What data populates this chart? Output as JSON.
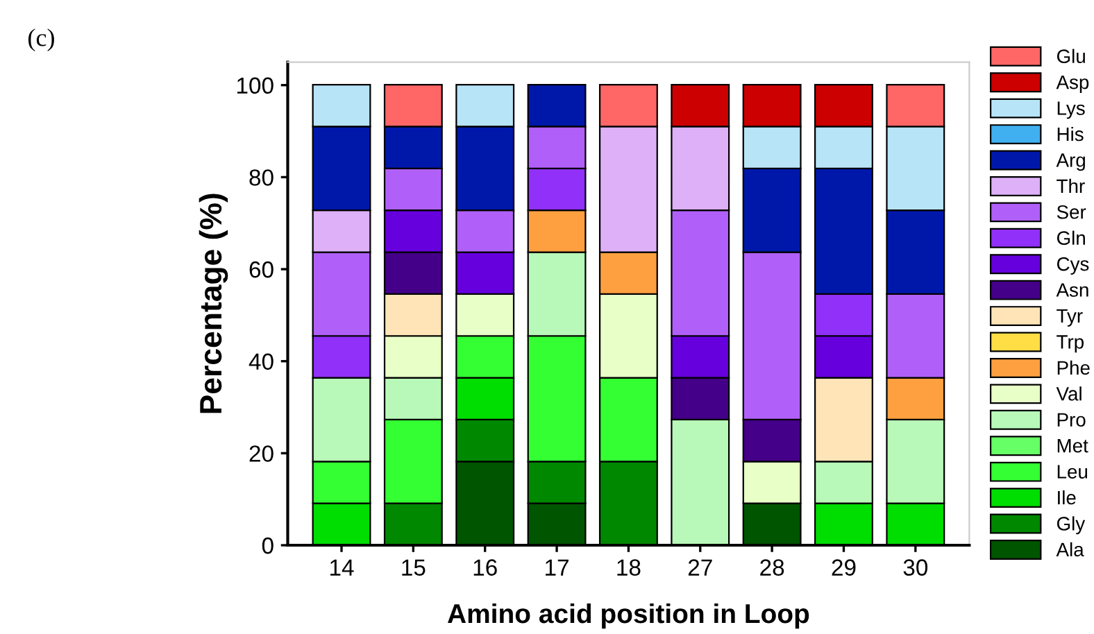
{
  "chart_data": {
    "type": "bar",
    "stacked": true,
    "xlabel": "Amino acid position in Loop",
    "ylabel": "Percentage (%)",
    "annotations": [
      "(c)"
    ],
    "categories": [
      "14",
      "15",
      "16",
      "17",
      "18",
      "27",
      "28",
      "29",
      "30"
    ],
    "ylim": [
      0,
      105
    ],
    "yticks": [
      0,
      20,
      40,
      60,
      80,
      100
    ],
    "grid": false,
    "legend": "right",
    "series": [
      {
        "name": "Ala",
        "color": "#005500",
        "values": [
          null,
          null,
          18.2,
          9.1,
          null,
          null,
          9.1,
          null,
          null
        ]
      },
      {
        "name": "Gly",
        "color": "#008800",
        "values": [
          null,
          9.1,
          9.1,
          9.1,
          18.2,
          null,
          null,
          null,
          null
        ]
      },
      {
        "name": "Ile",
        "color": "#00dd00",
        "values": [
          9.1,
          null,
          9.1,
          null,
          null,
          null,
          null,
          9.1,
          9.1
        ]
      },
      {
        "name": "Leu",
        "color": "#33ff33",
        "values": [
          9.1,
          18.2,
          9.1,
          27.3,
          18.2,
          null,
          null,
          null,
          null
        ]
      },
      {
        "name": "Met",
        "color": "#66ff66",
        "values": [
          null,
          null,
          null,
          null,
          null,
          null,
          null,
          null,
          null
        ]
      },
      {
        "name": "Pro",
        "color": "#b8f8b8",
        "values": [
          18.2,
          9.1,
          null,
          18.2,
          null,
          27.3,
          null,
          9.1,
          18.2
        ]
      },
      {
        "name": "Val",
        "color": "#e8ffc8",
        "values": [
          null,
          9.1,
          9.1,
          null,
          18.2,
          null,
          9.1,
          null,
          null
        ]
      },
      {
        "name": "Phe",
        "color": "#ffa040",
        "values": [
          null,
          null,
          null,
          9.1,
          9.1,
          null,
          null,
          null,
          9.1
        ]
      },
      {
        "name": "Trp",
        "color": "#ffdd44",
        "values": [
          null,
          null,
          null,
          null,
          null,
          null,
          null,
          null,
          null
        ]
      },
      {
        "name": "Tyr",
        "color": "#ffe4b8",
        "values": [
          null,
          9.1,
          null,
          null,
          null,
          null,
          null,
          18.2,
          null
        ]
      },
      {
        "name": "Asn",
        "color": "#440088",
        "values": [
          null,
          9.1,
          null,
          null,
          null,
          9.1,
          9.1,
          null,
          null
        ]
      },
      {
        "name": "Cys",
        "color": "#6600dd",
        "values": [
          null,
          9.1,
          9.1,
          null,
          null,
          9.1,
          null,
          9.1,
          null
        ]
      },
      {
        "name": "Gln",
        "color": "#9030f8",
        "values": [
          9.1,
          null,
          null,
          9.1,
          null,
          null,
          null,
          9.1,
          null
        ]
      },
      {
        "name": "Ser",
        "color": "#b060f8",
        "values": [
          18.2,
          9.1,
          9.1,
          9.1,
          null,
          27.3,
          36.4,
          null,
          18.2
        ]
      },
      {
        "name": "Thr",
        "color": "#ddb0f8",
        "values": [
          9.1,
          null,
          null,
          null,
          27.3,
          18.2,
          null,
          null,
          null
        ]
      },
      {
        "name": "Arg",
        "color": "#0018aa",
        "values": [
          18.2,
          9.1,
          18.2,
          9.1,
          null,
          null,
          18.2,
          27.3,
          18.2
        ]
      },
      {
        "name": "His",
        "color": "#40b0f0",
        "values": [
          null,
          null,
          null,
          null,
          null,
          null,
          null,
          null,
          null
        ]
      },
      {
        "name": "Lys",
        "color": "#b8e4f8",
        "values": [
          9.1,
          null,
          9.1,
          null,
          null,
          null,
          9.1,
          9.1,
          18.2
        ]
      },
      {
        "name": "Asp",
        "color": "#cc0000",
        "values": [
          null,
          null,
          null,
          null,
          null,
          9.1,
          9.1,
          9.1,
          null
        ]
      },
      {
        "name": "Glu",
        "color": "#ff6666",
        "values": [
          null,
          9.1,
          null,
          null,
          9.1,
          null,
          null,
          null,
          9.1
        ]
      }
    ]
  }
}
